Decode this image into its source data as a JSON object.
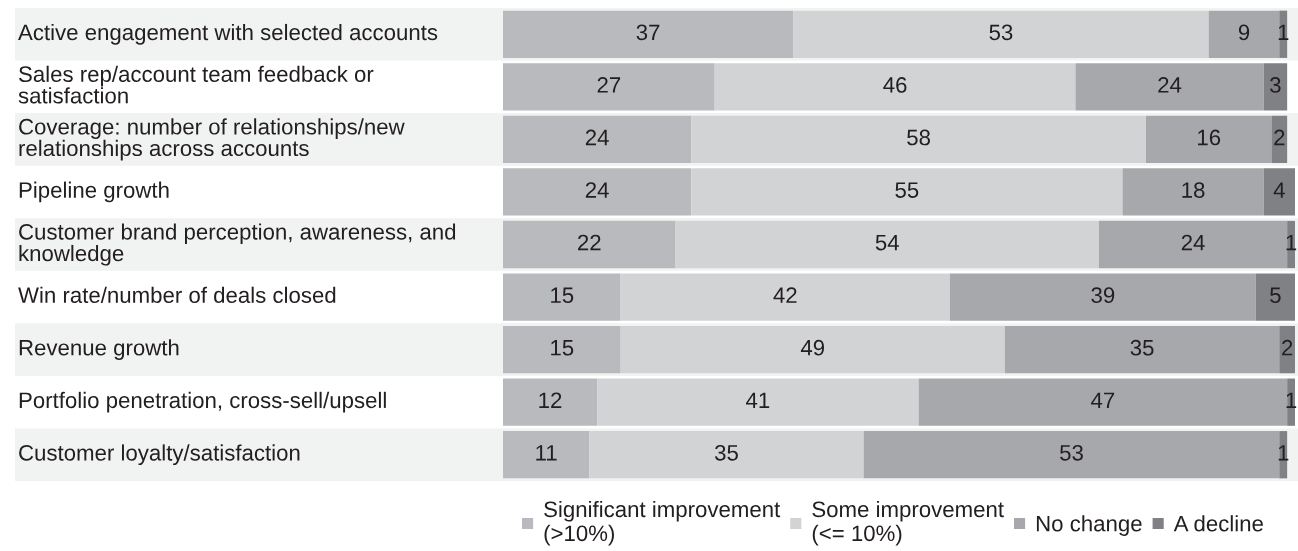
{
  "chart_data": {
    "type": "bar",
    "orientation": "horizontal",
    "stacked": true,
    "data_labels": true,
    "legend": "bottom",
    "categories": [
      "Active engagement with selected accounts",
      "Sales rep/account team feedback or satisfaction",
      "Coverage: number of relationships/new relationships across accounts",
      "Pipeline growth",
      "Customer brand perception, awareness, and knowledge",
      "Win rate/number of deals closed",
      "Revenue growth",
      "Portfolio penetration, cross-sell/upsell",
      "Customer loyalty/satisfaction"
    ],
    "series": [
      {
        "name": "Significant improvement (>10%)",
        "color": "#b9babd",
        "values": [
          37,
          27,
          24,
          24,
          22,
          15,
          15,
          12,
          11
        ]
      },
      {
        "name": "Some improvement (<= 10%)",
        "color": "#d1d3d4",
        "values": [
          53,
          46,
          58,
          55,
          54,
          42,
          49,
          41,
          35
        ]
      },
      {
        "name": "No change",
        "color": "#a7a8ab",
        "values": [
          9,
          24,
          16,
          18,
          24,
          39,
          35,
          47,
          53
        ]
      },
      {
        "name": "A decline",
        "color": "#808184",
        "values": [
          1,
          3,
          2,
          4,
          1,
          5,
          2,
          1,
          1
        ]
      }
    ]
  }
}
